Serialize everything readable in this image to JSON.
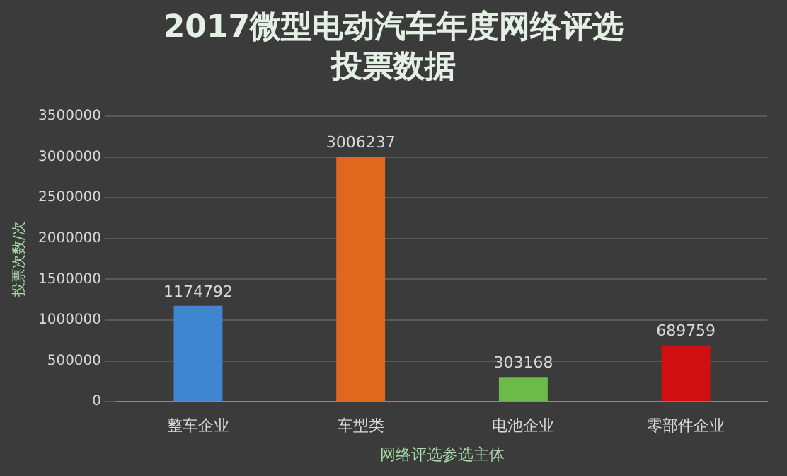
{
  "chart_data": {
    "type": "bar",
    "title": "2017微型电动汽车年度网络评选投票数据",
    "xlabel": "网络评选参选主体",
    "ylabel": "投票次数/次",
    "categories": [
      "整车企业",
      "车型类",
      "电池企业",
      "零部件企业"
    ],
    "values": [
      1174792,
      3006237,
      303168,
      689759
    ],
    "colors": [
      "#3f86d0",
      "#e0671e",
      "#6cba4a",
      "#d01010"
    ],
    "ylim": [
      0,
      3500000
    ],
    "yticks": [
      0,
      500000,
      1000000,
      1500000,
      2000000,
      2500000,
      3000000,
      3500000
    ],
    "grid": "y",
    "data_labels": true
  }
}
